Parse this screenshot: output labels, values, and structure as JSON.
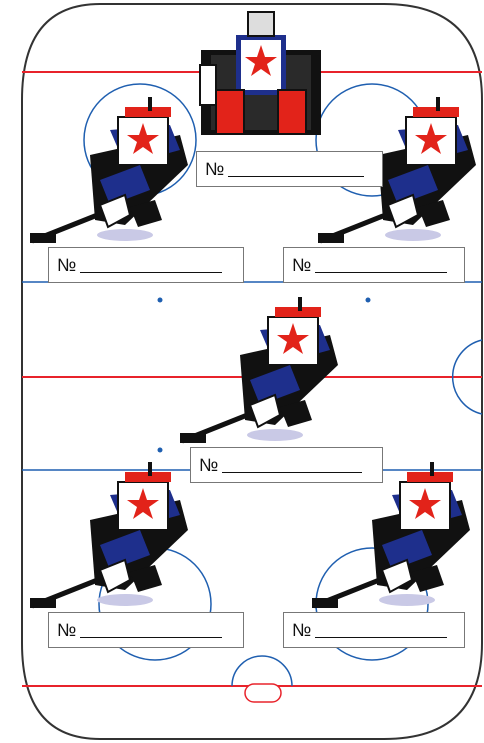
{
  "labels": {
    "goalie": "№",
    "player_1": "№",
    "player_2": "№",
    "player_3": "№",
    "player_4": "№",
    "player_5": "№"
  },
  "colors": {
    "rink_line_red": "#e8232b",
    "rink_line_blue": "#1f5fb0",
    "rink_border": "#333333",
    "jersey_white": "#ffffff",
    "jersey_blue": "#1e2f8c",
    "jersey_red": "#e2231a",
    "jersey_black": "#111111"
  }
}
